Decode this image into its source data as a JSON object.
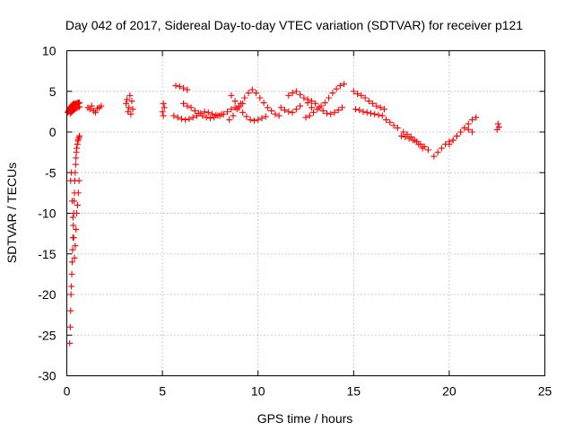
{
  "chart_data": {
    "type": "scatter",
    "title": "Day 042 of 2017, Sidereal Day-to-day VTEC variation (SDTVAR) for receiver p121",
    "xlabel": "GPS time / hours",
    "ylabel": "SDTVAR / TECUs",
    "xlim": [
      0,
      25
    ],
    "ylim": [
      -30,
      10
    ],
    "xticks": [
      0,
      5,
      10,
      15,
      20,
      25
    ],
    "yticks": [
      -30,
      -25,
      -20,
      -15,
      -10,
      -5,
      0,
      5,
      10
    ],
    "grid": true,
    "marker": "+",
    "colors": {
      "series": "#ff0000",
      "grid": "#9a9a9a",
      "axes": "#000000"
    },
    "series": [
      {
        "name": "SDTVAR",
        "x": [
          0.05,
          0.08,
          0.1,
          0.12,
          0.15,
          0.18,
          0.2,
          0.22,
          0.25,
          0.28,
          0.3,
          0.33,
          0.36,
          0.4,
          0.45,
          0.5,
          0.55,
          0.6,
          0.62,
          0.66,
          0.18,
          0.22,
          0.26,
          0.3,
          0.35,
          0.42,
          0.5,
          0.58,
          0.66,
          0.15,
          0.18,
          0.2,
          0.22,
          0.24,
          0.26,
          0.28,
          0.3,
          0.32,
          0.34,
          0.36,
          0.38,
          0.4,
          0.42,
          0.44,
          0.46,
          0.48,
          0.5,
          0.52,
          0.55,
          0.58,
          0.6,
          0.63,
          0.66,
          0.2,
          0.24,
          0.28,
          0.32,
          0.36,
          0.4,
          0.44,
          0.48,
          0.52,
          0.56,
          0.6,
          0.64,
          1.1,
          1.2,
          1.3,
          1.4,
          1.5,
          1.6,
          1.7,
          1.8,
          3.1,
          3.15,
          3.2,
          3.25,
          3.3,
          3.35,
          3.4,
          3.45,
          5.0,
          5.05,
          5.05,
          5.1,
          5.7,
          5.9,
          6.1,
          6.3,
          5.6,
          5.8,
          6.0,
          6.2,
          6.4,
          6.6,
          6.8,
          7.0,
          7.2,
          7.4,
          7.6,
          7.8,
          8.0,
          8.2,
          8.4,
          8.6,
          8.8,
          9.0,
          9.2,
          6.1,
          6.3,
          6.5,
          6.7,
          6.9,
          7.1,
          7.3,
          7.5,
          7.7,
          7.9,
          8.1,
          8.5,
          8.7,
          8.9,
          9.1,
          9.3,
          9.5,
          9.7,
          9.9,
          10.1,
          10.3,
          10.5,
          10.7,
          10.9,
          11.1,
          8.6,
          8.8,
          9.0,
          9.2,
          9.4,
          9.6,
          9.8,
          10.0,
          10.2,
          10.4,
          11.2,
          11.4,
          11.6,
          11.8,
          12.0,
          12.2,
          11.6,
          11.8,
          12.0,
          12.2,
          12.4,
          12.6,
          12.8,
          12.5,
          12.7,
          12.9,
          13.1,
          13.3,
          13.5,
          13.7,
          13.9,
          14.1,
          14.3,
          14.5,
          12.6,
          12.8,
          13.0,
          13.2,
          13.4,
          13.6,
          13.8,
          14.0,
          14.2,
          14.4,
          15.0,
          15.2,
          15.4,
          15.6,
          15.8,
          16.0,
          16.2,
          16.4,
          16.6,
          15.1,
          15.3,
          15.5,
          15.7,
          15.9,
          16.1,
          16.3,
          16.5,
          16.7,
          16.9,
          17.1,
          17.3,
          17.5,
          17.7,
          17.9,
          18.1,
          18.3,
          18.5,
          18.7,
          18.9,
          17.6,
          17.8,
          18.0,
          18.2,
          18.4,
          18.6,
          19.2,
          19.4,
          19.6,
          19.8,
          20.0,
          20.2,
          20.0,
          20.2,
          20.4,
          20.6,
          20.8,
          21.0,
          21.2,
          21.4,
          20.4,
          20.6,
          20.8,
          21.0,
          21.2,
          22.5,
          22.55,
          22.6
        ],
        "y": [
          2.4,
          2.5,
          2.6,
          2.8,
          2.9,
          3.0,
          3.0,
          3.1,
          3.2,
          3.3,
          3.3,
          3.4,
          3.5,
          3.4,
          3.5,
          3.5,
          3.6,
          3.5,
          3.6,
          3.6,
          2.3,
          2.4,
          2.5,
          2.6,
          2.7,
          2.8,
          2.9,
          3.0,
          3.1,
          -26.0,
          -24.0,
          -22.0,
          -20.0,
          -19.0,
          -17.5,
          -16.0,
          -14.5,
          -13.0,
          -11.5,
          -10.0,
          -8.5,
          -7.5,
          -6.0,
          -5.0,
          -4.0,
          -3.2,
          -2.5,
          -2.0,
          -1.5,
          -1.1,
          -0.9,
          -0.7,
          -0.5,
          -6.0,
          -5.0,
          -8.5,
          -10.5,
          -13.0,
          -15.5,
          -14.0,
          -12.0,
          -10.0,
          -9.0,
          -7.5,
          -6.0,
          3.0,
          2.8,
          3.2,
          2.6,
          2.4,
          2.9,
          3.0,
          3.2,
          3.5,
          4.0,
          2.5,
          3.0,
          4.5,
          2.2,
          3.8,
          2.8,
          2.5,
          3.5,
          2.0,
          3.0,
          5.7,
          5.6,
          5.4,
          5.2,
          2.0,
          1.8,
          1.6,
          1.5,
          1.6,
          1.8,
          2.0,
          2.3,
          2.5,
          2.4,
          2.2,
          2.1,
          2.0,
          2.2,
          2.5,
          2.8,
          3.0,
          3.2,
          3.5,
          3.5,
          3.2,
          3.0,
          2.6,
          2.3,
          2.0,
          1.8,
          1.7,
          1.8,
          2.0,
          2.2,
          1.5,
          2.0,
          2.8,
          3.5,
          4.2,
          4.8,
          5.2,
          4.8,
          4.2,
          3.6,
          3.0,
          2.6,
          2.2,
          2.0,
          4.5,
          3.8,
          3.0,
          2.4,
          1.9,
          1.5,
          1.4,
          1.5,
          1.7,
          1.9,
          3.0,
          2.7,
          2.5,
          2.4,
          2.8,
          3.2,
          4.5,
          4.8,
          5.0,
          4.6,
          4.2,
          3.6,
          3.0,
          1.8,
          2.0,
          2.4,
          2.8,
          3.2,
          3.6,
          4.2,
          4.8,
          5.3,
          5.7,
          5.9,
          4.0,
          3.8,
          3.5,
          3.0,
          2.6,
          2.3,
          2.2,
          2.4,
          2.7,
          3.0,
          5.0,
          4.7,
          4.5,
          4.2,
          3.8,
          3.5,
          3.2,
          3.0,
          2.8,
          2.8,
          2.7,
          2.5,
          2.4,
          2.3,
          2.2,
          2.1,
          2.0,
          1.5,
          1.2,
          0.8,
          0.5,
          -0.5,
          -0.6,
          -0.8,
          -1.0,
          -1.2,
          -1.5,
          -1.8,
          -2.2,
          0.0,
          -0.3,
          -0.6,
          -1.0,
          -1.5,
          -2.0,
          -3.0,
          -2.5,
          -2.0,
          -1.5,
          -1.2,
          -1.0,
          -1.5,
          -1.0,
          -0.5,
          0.0,
          0.5,
          1.0,
          1.5,
          1.8,
          -0.5,
          0.0,
          0.5,
          0.3,
          0.0,
          0.3,
          1.0,
          0.6
        ]
      }
    ]
  }
}
